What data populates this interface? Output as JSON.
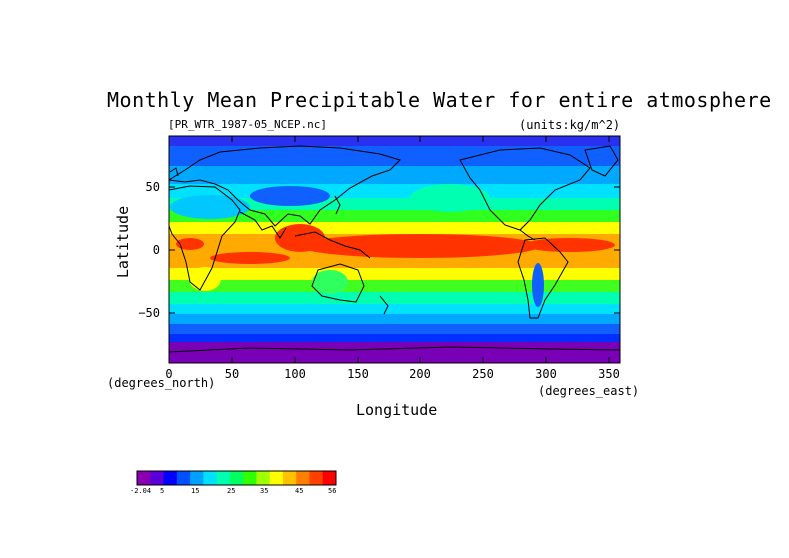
{
  "title": "Monthly Mean Precipitable Water for entire atmosphere",
  "file_label": "[PR_WTR_1987-05_NCEP.nc]",
  "units_label": "(units:kg/m^2)",
  "y_axis": {
    "label": "Latitude",
    "units": "(degrees_north)",
    "ticks": [
      "50",
      "0",
      "−50"
    ]
  },
  "x_axis": {
    "label": "Longitude",
    "units": "(degrees_east)",
    "ticks": [
      "0",
      "50",
      "100",
      "150",
      "200",
      "250",
      "300",
      "350"
    ]
  },
  "map": {
    "lon_range": [
      0,
      360
    ],
    "lat_range": [
      -90,
      90
    ],
    "projection": "equirectangular",
    "colors": {
      "bg_low": "#7700aa",
      "ocean_cold": "#0030ff",
      "mid": "#00ccff",
      "warm": "#00ff60",
      "hot": "#ffaa00",
      "peak": "#ff3300",
      "land_outline": "#000000"
    }
  },
  "colorbar": {
    "labels": [
      "-2.04",
      "5",
      "15",
      "25",
      "35",
      "45",
      "56"
    ],
    "colors": [
      "#8a00b0",
      "#5a00d8",
      "#0000ff",
      "#0050ff",
      "#00a0ff",
      "#00e0ff",
      "#00ffb0",
      "#00ff60",
      "#30ff00",
      "#a0ff00",
      "#ffff00",
      "#ffc000",
      "#ff8000",
      "#ff4000",
      "#ff0000"
    ]
  }
}
